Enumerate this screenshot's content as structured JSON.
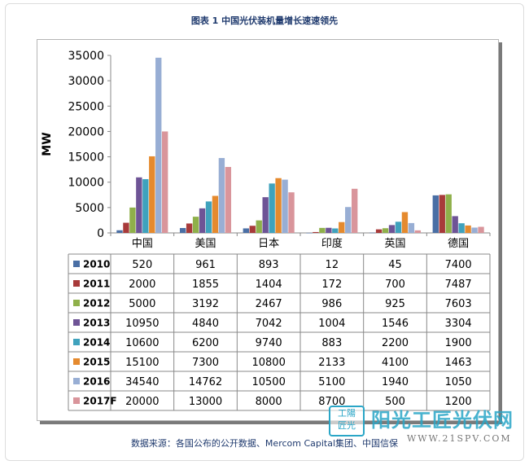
{
  "chart_data": {
    "type": "bar",
    "title": "图表 1 中国光伏装机量增长速速领先",
    "ylabel": "MW",
    "xlabel": "",
    "ylim": [
      0,
      35000
    ],
    "yticks": [
      0,
      5000,
      10000,
      15000,
      20000,
      25000,
      30000,
      35000
    ],
    "grid": false,
    "legend": "left-table",
    "categories": [
      "中国",
      "美国",
      "日本",
      "印度",
      "英国",
      "德国"
    ],
    "series": [
      {
        "name": "2010",
        "color": "#4a6fa5",
        "values": [
          520,
          961,
          893,
          12,
          45,
          7400
        ]
      },
      {
        "name": "2011",
        "color": "#a83a3a",
        "values": [
          2000,
          1855,
          1404,
          172,
          700,
          7487
        ]
      },
      {
        "name": "2012",
        "color": "#8fb04a",
        "values": [
          5000,
          3192,
          2467,
          986,
          925,
          7603
        ]
      },
      {
        "name": "2013",
        "color": "#6e5496",
        "values": [
          10950,
          4840,
          7042,
          1004,
          1546,
          3304
        ]
      },
      {
        "name": "2014",
        "color": "#3fa2bd",
        "values": [
          10600,
          6200,
          9740,
          883,
          2200,
          1900
        ]
      },
      {
        "name": "2015",
        "color": "#e58a2e",
        "values": [
          15100,
          7300,
          10800,
          2133,
          4100,
          1463
        ]
      },
      {
        "name": "2016",
        "color": "#98aed4",
        "values": [
          34540,
          14762,
          10500,
          5100,
          1940,
          1050
        ]
      },
      {
        "name": "2017F",
        "color": "#d9959b",
        "values": [
          20000,
          13000,
          8000,
          8700,
          500,
          1200
        ]
      }
    ]
  },
  "source_note": "数据来源：各国公布的公开数据、Mercom Capital集团、中国信保",
  "watermark": {
    "seal": "工陽匠光",
    "name": "阳光工匠光伏网",
    "url": "WWW.21SPV.COM"
  }
}
